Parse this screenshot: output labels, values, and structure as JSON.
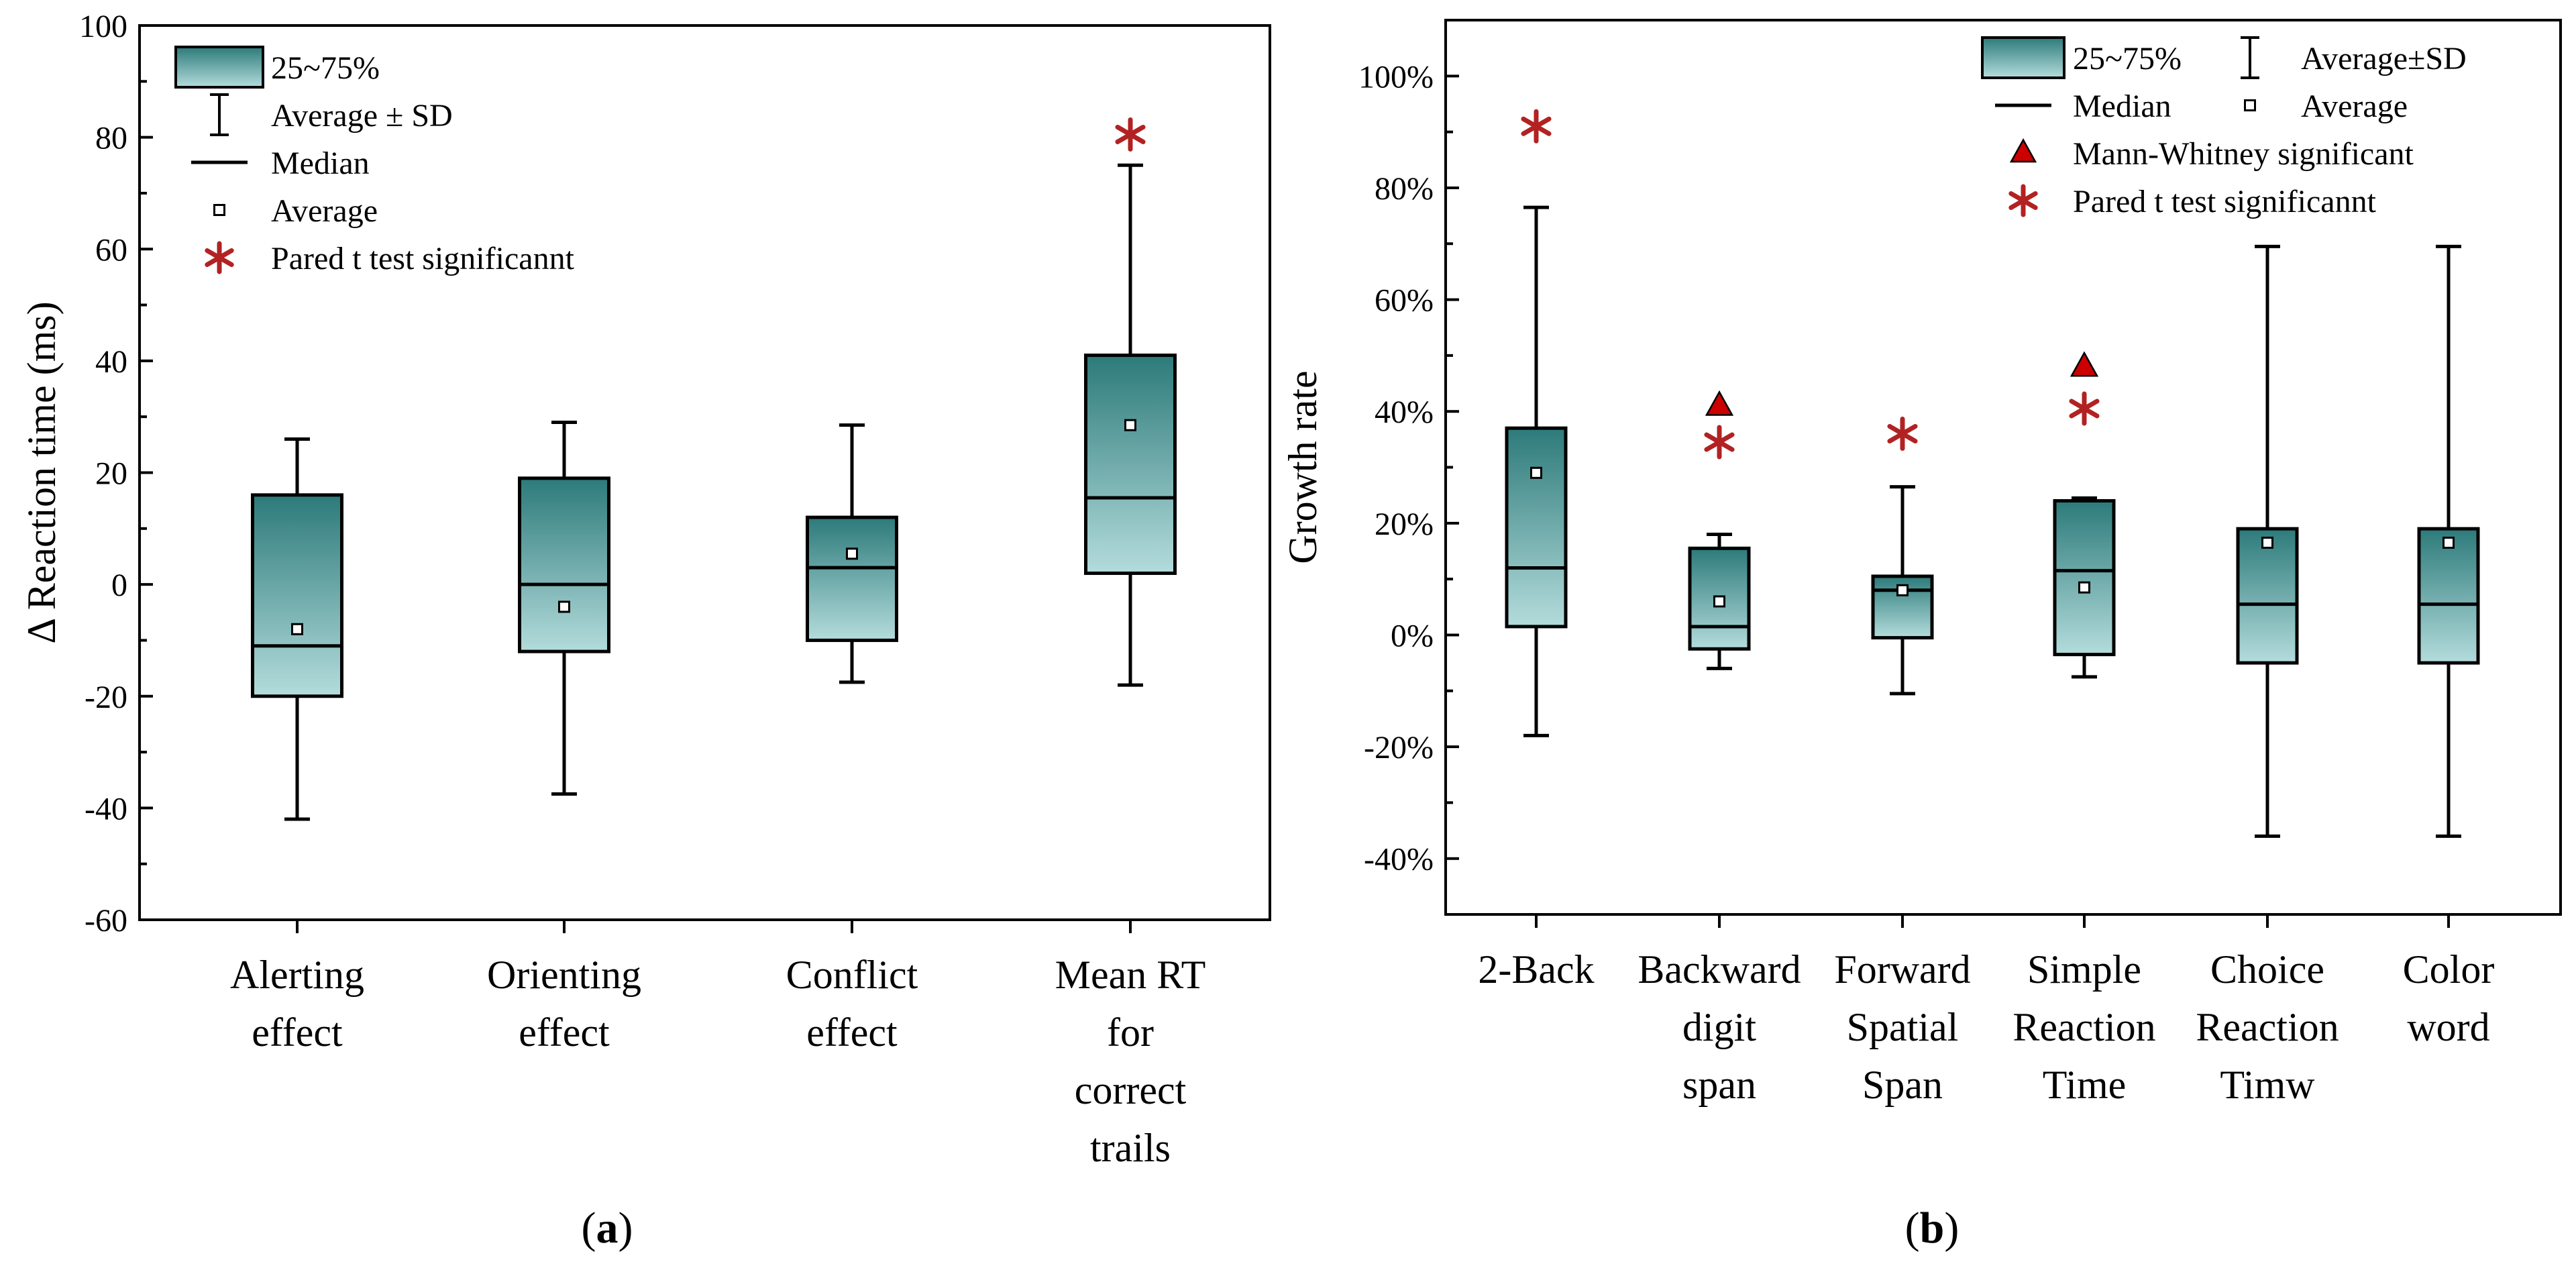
{
  "colors": {
    "box_top": "#2d7a7a",
    "box_bottom": "#b4dcdc",
    "significance": "#b22222",
    "axis": "#000000"
  },
  "chart_data": [
    {
      "type": "box",
      "panel_label": "a",
      "title": "",
      "xlabel": "",
      "ylabel": "Δ Reaction time (ms)",
      "ylim": [
        -60,
        100
      ],
      "yticks": [
        -60,
        -40,
        -20,
        0,
        20,
        40,
        60,
        80,
        100
      ],
      "ytick_labels": [
        "-60",
        "-40",
        "-20",
        "0",
        "20",
        "40",
        "60",
        "80",
        "100"
      ],
      "categories": [
        [
          "Alerting",
          "effect"
        ],
        [
          "Orienting",
          "effect"
        ],
        [
          "Conflict",
          "effect"
        ],
        [
          "Mean RT",
          "for",
          "correct",
          "trails"
        ]
      ],
      "boxes": [
        {
          "q1": -20,
          "q3": 16,
          "median": -11,
          "mean": -8,
          "sd_low": -42,
          "sd_high": 26
        },
        {
          "q1": -12,
          "q3": 19,
          "median": 0,
          "mean": -4,
          "sd_low": -37.5,
          "sd_high": 29
        },
        {
          "q1": -10,
          "q3": 12,
          "median": 3,
          "mean": 5.5,
          "sd_low": -17.5,
          "sd_high": 28.5
        },
        {
          "q1": 2,
          "q3": 41,
          "median": 15.5,
          "mean": 28.5,
          "sd_low": -18,
          "sd_high": 75
        }
      ],
      "markers": [
        {
          "category_index": 3,
          "type": "star",
          "value": 80.5
        }
      ],
      "legend": {
        "position": "top-left",
        "entries": [
          {
            "symbol": "box",
            "label": "25~75%"
          },
          {
            "symbol": "errorbar",
            "label": "Average ± SD"
          },
          {
            "symbol": "line",
            "label": "Median"
          },
          {
            "symbol": "square",
            "label": "Average"
          },
          {
            "symbol": "star",
            "label": "Pared t test significannt"
          }
        ]
      }
    },
    {
      "type": "box",
      "panel_label": "b",
      "title": "",
      "xlabel": "",
      "ylabel": "Growth rate",
      "ylim": [
        -50,
        110
      ],
      "yticks": [
        -40,
        -20,
        0,
        20,
        40,
        60,
        80,
        100
      ],
      "ytick_labels": [
        "-40%",
        "-20%",
        "0%",
        "20%",
        "40%",
        "60%",
        "80%",
        "100%"
      ],
      "categories": [
        [
          "2-Back"
        ],
        [
          "Backward",
          "digit",
          "span"
        ],
        [
          "Forward",
          "Spatial",
          "Span"
        ],
        [
          "Simple",
          "Reaction",
          "Time"
        ],
        [
          "Choice",
          "Reaction",
          "Timw"
        ],
        [
          "Color",
          "word"
        ]
      ],
      "boxes": [
        {
          "q1": 1.5,
          "q3": 37,
          "median": 12,
          "mean": 29,
          "sd_low": -18,
          "sd_high": 76.5
        },
        {
          "q1": -2.5,
          "q3": 15.5,
          "median": 1.5,
          "mean": 6,
          "sd_low": -6,
          "sd_high": 18
        },
        {
          "q1": -0.5,
          "q3": 10.5,
          "median": 8,
          "mean": 8,
          "sd_low": -10.5,
          "sd_high": 26.5
        },
        {
          "q1": -3.5,
          "q3": 24,
          "median": 11.5,
          "mean": 8.5,
          "sd_low": -7.5,
          "sd_high": 24.5
        },
        {
          "q1": -5,
          "q3": 19,
          "median": 5.5,
          "mean": 16.5,
          "sd_low": -36,
          "sd_high": 69.5
        },
        {
          "q1": -5,
          "q3": 19,
          "median": 5.5,
          "mean": 16.5,
          "sd_low": -36,
          "sd_high": 69.5
        }
      ],
      "markers": [
        {
          "category_index": 0,
          "type": "star",
          "value": 91
        },
        {
          "category_index": 1,
          "type": "triangle",
          "value": 41
        },
        {
          "category_index": 1,
          "type": "star",
          "value": 34.5
        },
        {
          "category_index": 2,
          "type": "star",
          "value": 36
        },
        {
          "category_index": 3,
          "type": "triangle",
          "value": 48
        },
        {
          "category_index": 3,
          "type": "star",
          "value": 40.5
        }
      ],
      "legend": {
        "position": "top-right",
        "entries": [
          {
            "symbol": "box",
            "label": "25~75%"
          },
          {
            "symbol": "errorbar",
            "label": "Average±SD"
          },
          {
            "symbol": "line",
            "label": "Median"
          },
          {
            "symbol": "square",
            "label": "Average"
          },
          {
            "symbol": "triangle",
            "label": "Mann-Whitney significant"
          },
          {
            "symbol": "star",
            "label": "Pared t test significannt"
          }
        ]
      }
    }
  ]
}
